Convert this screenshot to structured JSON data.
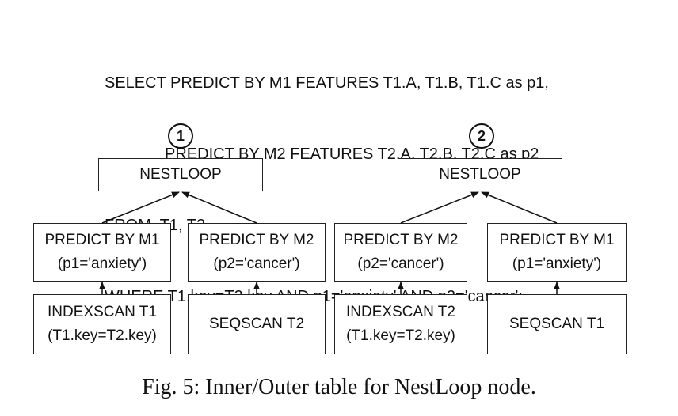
{
  "sql": {
    "line1": "SELECT PREDICT BY M1 FEATURES T1.A, T1.B, T1.C as p1,",
    "line2": "PREDICT BY M2 FEATURES T2.A, T2.B, T2.C as p2",
    "line3": "FROM  T1, T2",
    "line4": "WHERE T1.key=T2.key AND p1='anxiety' AND p2='cancer';"
  },
  "plan1": {
    "badge": "1",
    "nestloop": "NESTLOOP",
    "left_predict": {
      "title": "PREDICT BY M1",
      "cond": "(p1='anxiety')"
    },
    "right_predict": {
      "title": "PREDICT BY M2",
      "cond": "(p2='cancer')"
    },
    "left_scan": {
      "title": "INDEXSCAN T1",
      "cond": "(T1.key=T2.key)"
    },
    "right_scan": {
      "title": "SEQSCAN T2"
    }
  },
  "plan2": {
    "badge": "2",
    "nestloop": "NESTLOOP",
    "left_predict": {
      "title": "PREDICT BY M2",
      "cond": "(p2='cancer')"
    },
    "right_predict": {
      "title": "PREDICT BY M1",
      "cond": "(p1='anxiety')"
    },
    "left_scan": {
      "title": "INDEXSCAN T2",
      "cond": "(T1.key=T2.key)"
    },
    "right_scan": {
      "title": "SEQSCAN T1"
    }
  },
  "caption": "Fig. 5: Inner/Outer table for NestLoop node."
}
